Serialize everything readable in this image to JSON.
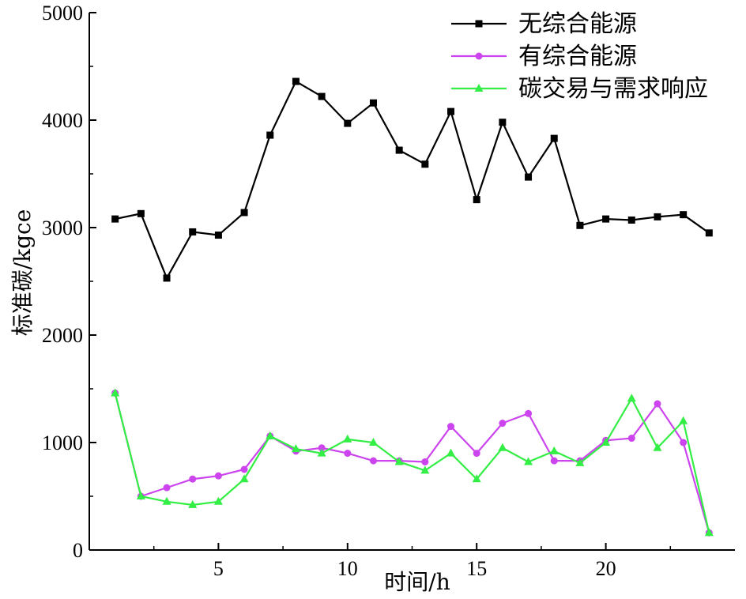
{
  "chart_data": {
    "type": "line",
    "xlabel": "时间/h",
    "ylabel": "标准碳/kgce",
    "xlim": [
      0,
      25
    ],
    "ylim": [
      0,
      5000
    ],
    "x_ticks": [
      5,
      10,
      15,
      20
    ],
    "y_ticks": [
      0,
      1000,
      2000,
      3000,
      4000,
      5000
    ],
    "grid": false,
    "legend_position": "top-right",
    "x": [
      1,
      2,
      3,
      4,
      5,
      6,
      7,
      8,
      9,
      10,
      11,
      12,
      13,
      14,
      15,
      16,
      17,
      18,
      19,
      20,
      21,
      22,
      23,
      24
    ],
    "series": [
      {
        "name": "无综合能源",
        "color": "#000000",
        "marker": "square",
        "values": [
          3080,
          3130,
          2530,
          2960,
          2930,
          3140,
          3860,
          4360,
          4220,
          3970,
          4160,
          3720,
          3590,
          4080,
          3260,
          3980,
          3470,
          3830,
          3020,
          3080,
          3070,
          3100,
          3120,
          2950
        ]
      },
      {
        "name": "有综合能源",
        "color": "#cc44ee",
        "marker": "circle",
        "values": [
          1460,
          500,
          580,
          660,
          690,
          750,
          1060,
          920,
          950,
          900,
          830,
          830,
          820,
          1150,
          900,
          1180,
          1270,
          830,
          830,
          1020,
          1040,
          1360,
          1000,
          160
        ]
      },
      {
        "name": "碳交易与需求响应",
        "color": "#33ee44",
        "marker": "triangle",
        "values": [
          1460,
          500,
          450,
          420,
          450,
          660,
          1060,
          940,
          900,
          1030,
          1000,
          820,
          740,
          900,
          660,
          950,
          820,
          920,
          810,
          1000,
          1410,
          950,
          1200,
          160
        ]
      }
    ]
  }
}
